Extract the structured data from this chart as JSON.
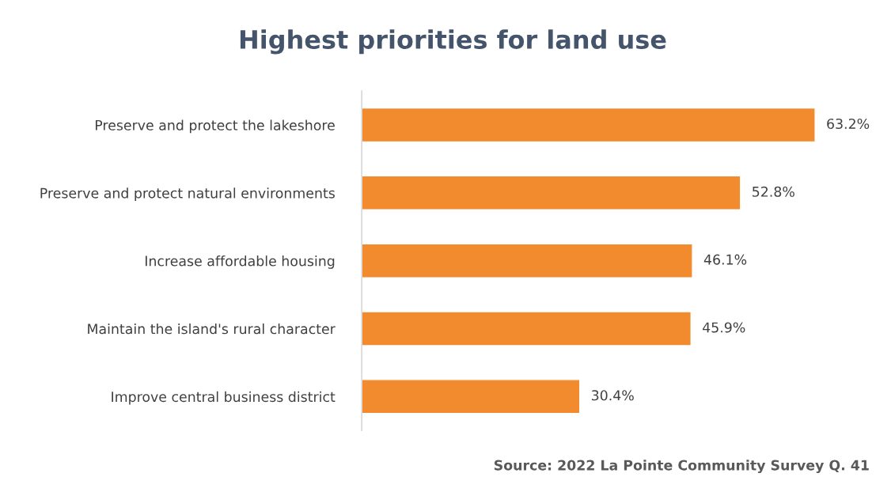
{
  "chart_data": {
    "type": "bar",
    "orientation": "horizontal",
    "title": "Highest priorities for land use",
    "categories": [
      "Preserve and protect the lakeshore",
      "Preserve and protect natural environments",
      "Increase affordable housing",
      "Maintain the island's rural character",
      "Improve central business district"
    ],
    "values": [
      63.2,
      52.8,
      46.1,
      45.9,
      30.4
    ],
    "value_labels": [
      "63.2%",
      "52.8%",
      "46.1%",
      "45.9%",
      "30.4%"
    ],
    "color": "#f28a2e",
    "grid": false,
    "tick_labels": "y",
    "annotations": [
      "Source: 2022 La Pointe Community Survey Q. 41"
    ]
  }
}
